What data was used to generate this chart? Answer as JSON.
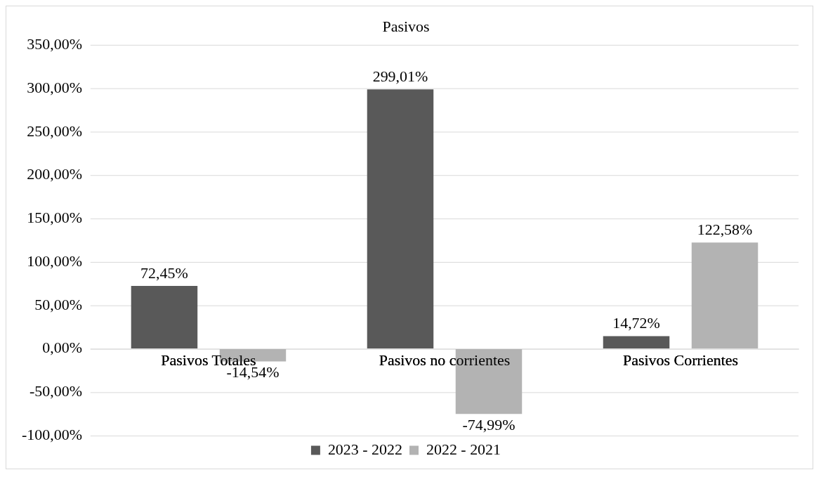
{
  "chart_data": {
    "type": "bar",
    "title": "Pasivos",
    "categories": [
      "Pasivos Totales",
      "Pasivos no corrientes",
      "Pasivos Corrientes"
    ],
    "series": [
      {
        "name": "2023 - 2022",
        "color": "#595959",
        "values": [
          72.45,
          299.01,
          14.72
        ],
        "value_labels": [
          "72,45%",
          "299,01%",
          "14,72%"
        ]
      },
      {
        "name": "2022 - 2021",
        "color": "#b3b3b3",
        "values": [
          -14.54,
          -74.99,
          122.58
        ],
        "value_labels": [
          "-14,54%",
          "-74,99%",
          "122,58%"
        ]
      }
    ],
    "ylim": [
      -100,
      350
    ],
    "yticks": [
      {
        "value": -100,
        "label": "-100,00%"
      },
      {
        "value": -50,
        "label": "-50,00%"
      },
      {
        "value": 0,
        "label": "0,00%"
      },
      {
        "value": 50,
        "label": "50,00%"
      },
      {
        "value": 100,
        "label": "100,00%"
      },
      {
        "value": 150,
        "label": "150,00%"
      },
      {
        "value": 200,
        "label": "200,00%"
      },
      {
        "value": 250,
        "label": "250,00%"
      },
      {
        "value": 300,
        "label": "300,00%"
      },
      {
        "value": 350,
        "label": "350,00%"
      }
    ],
    "grid": "y",
    "legend": "bottom"
  }
}
